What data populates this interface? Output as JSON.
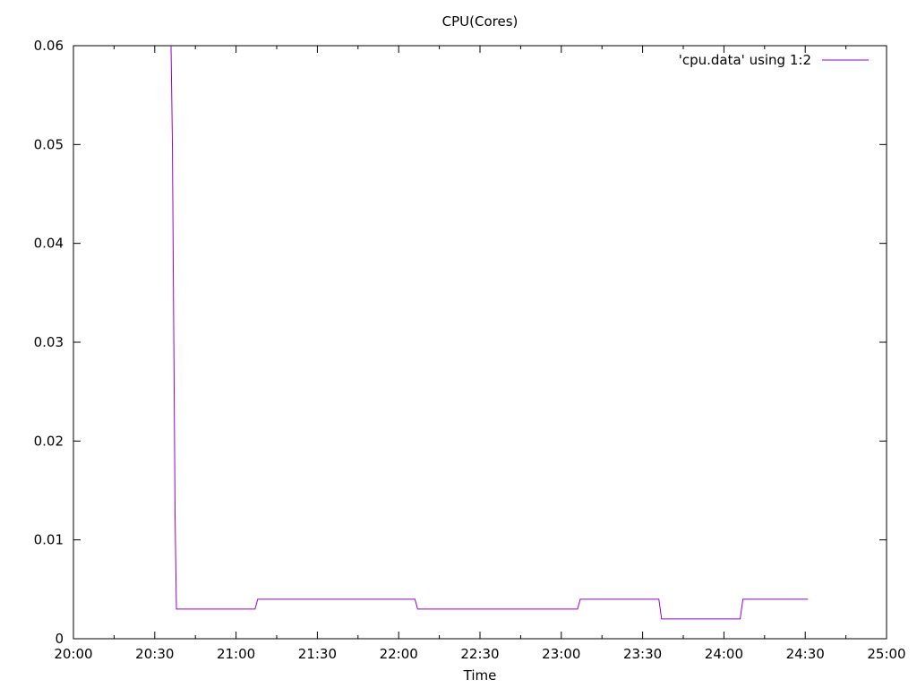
{
  "chart_data": {
    "type": "line",
    "title": "CPU(Cores)",
    "xlabel": "Time",
    "ylabel": "",
    "x_scale": "time",
    "xlim": [
      "20:00",
      "25:00"
    ],
    "ylim": [
      0,
      0.06
    ],
    "x_ticks": [
      "20:00",
      "20:30",
      "21:00",
      "21:30",
      "22:00",
      "22:30",
      "23:00",
      "23:30",
      "24:00",
      "24:30",
      "25:00"
    ],
    "y_ticks": [
      "0",
      "0.01",
      "0.02",
      "0.03",
      "0.04",
      "0.05",
      "0.06"
    ],
    "grid": false,
    "legend_position": "top-right",
    "series": [
      {
        "name": "'cpu.data' using 1:2",
        "color": "#9400d3",
        "x": [
          "20:36:00",
          "20:36:30",
          "20:37:00",
          "20:37:30",
          "20:38:00",
          "21:07:00",
          "21:08:00",
          "22:06:00",
          "22:07:00",
          "23:06:00",
          "23:07:00",
          "23:36:00",
          "23:37:00",
          "24:06:00",
          "24:07:00",
          "24:31:00"
        ],
        "y": [
          0.06,
          0.0505,
          0.0315,
          0.0125,
          0.003,
          0.003,
          0.004,
          0.004,
          0.003,
          0.003,
          0.004,
          0.004,
          0.002,
          0.002,
          0.004,
          0.004
        ]
      }
    ]
  }
}
